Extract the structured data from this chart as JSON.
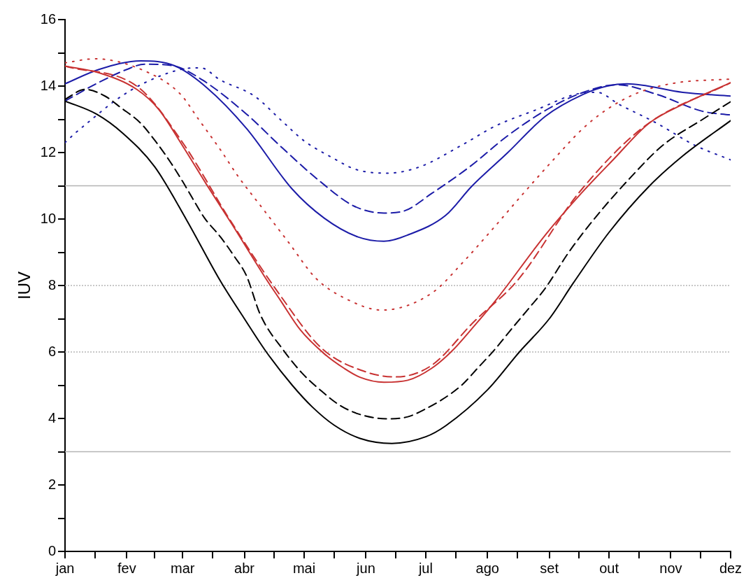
{
  "chart_data": {
    "type": "line",
    "ylabel": "IUV",
    "xlim": [
      "--01-01",
      "--12-01"
    ],
    "ylim": [
      0,
      16
    ],
    "xticks": [
      {
        "value": "--01-01",
        "label": "jan"
      },
      {
        "value": "--01-16",
        "label": null
      },
      {
        "value": "--02-01",
        "label": "fev"
      },
      {
        "value": "--02-15",
        "label": null
      },
      {
        "value": "--03-01",
        "label": "mar"
      },
      {
        "value": "--03-16",
        "label": null
      },
      {
        "value": "--04-01",
        "label": "abr"
      },
      {
        "value": "--04-16",
        "label": null
      },
      {
        "value": "--05-01",
        "label": "mai"
      },
      {
        "value": "--05-16",
        "label": null
      },
      {
        "value": "--06-01",
        "label": "jun"
      },
      {
        "value": "--06-16",
        "label": null
      },
      {
        "value": "--07-01",
        "label": "jul"
      },
      {
        "value": "--07-16",
        "label": null
      },
      {
        "value": "--08-01",
        "label": "ago"
      },
      {
        "value": "--08-16",
        "label": null
      },
      {
        "value": "--09-01",
        "label": "set"
      },
      {
        "value": "--09-16",
        "label": null
      },
      {
        "value": "--10-01",
        "label": "out"
      },
      {
        "value": "--10-16",
        "label": null
      },
      {
        "value": "--11-01",
        "label": "nov"
      },
      {
        "value": "--11-16",
        "label": null
      },
      {
        "value": "--12-01",
        "label": "dez"
      }
    ],
    "yticks": [
      0,
      {
        "value": 1,
        "label": null
      },
      2,
      {
        "value": 3,
        "label": null
      },
      4,
      {
        "value": 5,
        "label": null
      },
      6,
      {
        "value": 7,
        "label": null
      },
      8,
      {
        "value": 9,
        "label": null
      },
      10,
      {
        "value": 11,
        "label": null
      },
      12,
      {
        "value": 13,
        "label": null
      },
      14,
      {
        "value": 15,
        "label": null
      },
      16
    ],
    "grid": false,
    "legend": false,
    "marker": "none",
    "ref_lines": [
      {
        "axis": "y",
        "value": 11,
        "color": "#b4b4b4",
        "line_style": "solid"
      },
      {
        "axis": "y",
        "value": 8,
        "color": "#b4b4b4",
        "line_style": "dotted"
      },
      {
        "axis": "y",
        "value": 6,
        "color": "#b4b4b4",
        "line_style": "dotted"
      },
      {
        "axis": "y",
        "value": 3,
        "color": "#b4b4b4",
        "line_style": "solid"
      }
    ],
    "series": [
      {
        "color": "#000000",
        "line_style": "solid",
        "x": [
          "--01-01",
          "--01-17",
          "--01-30",
          "--02-15",
          "--03-03",
          "--03-20",
          "--04-01",
          "--04-12",
          "--04-25",
          "--05-05",
          "--05-16",
          "--05-29",
          "--06-14",
          "--07-01",
          "--07-11",
          "--08-01",
          "--08-17",
          "--09-01",
          "--09-13",
          "--10-01",
          "--10-21",
          "--11-07",
          "--12-01"
        ],
        "values": [
          13.55,
          13.15,
          12.58,
          11.57,
          9.97,
          8.13,
          7.0,
          6.0,
          5.0,
          4.35,
          3.8,
          3.4,
          3.25,
          3.45,
          3.78,
          4.86,
          6.0,
          7.0,
          8.07,
          9.6,
          10.98,
          11.9,
          12.96
        ]
      },
      {
        "color": "#000000",
        "line_style": "dashed",
        "x": [
          "--01-01",
          "--01-11",
          "--01-21",
          "--01-29",
          "--02-08",
          "--02-16",
          "--02-23",
          "--03-01",
          "--03-06",
          "--03-12",
          "--03-20",
          "--03-27",
          "--04-02",
          "--04-09",
          "--04-21",
          "--04-30",
          "--05-09",
          "--05-18",
          "--05-28",
          "--06-12",
          "--06-22",
          "--07-01",
          "--07-09",
          "--07-19",
          "--07-27",
          "--08-05",
          "--08-14",
          "--08-21",
          "--08-30",
          "--09-11",
          "--09-25",
          "--10-11",
          "--10-28",
          "--11-17",
          "--12-01"
        ],
        "values": [
          13.6,
          13.9,
          13.7,
          13.35,
          12.88,
          12.29,
          11.7,
          11.13,
          10.62,
          10.03,
          9.46,
          8.87,
          8.3,
          7.12,
          6.02,
          5.36,
          4.86,
          4.43,
          4.14,
          3.99,
          4.05,
          4.29,
          4.56,
          5.0,
          5.51,
          6.1,
          6.76,
          7.26,
          7.92,
          9.02,
          10.11,
          11.2,
          12.22,
          13.0,
          13.53
        ]
      },
      {
        "color": "#c83232",
        "line_style": "solid",
        "x": [
          "--01-01",
          "--01-18",
          "--02-06",
          "--02-17",
          "--03-01",
          "--03-13",
          "--03-26",
          "--04-11",
          "--04-19",
          "--04-29",
          "--05-11",
          "--05-21",
          "--05-29",
          "--06-10",
          "--06-22",
          "--07-04",
          "--07-14",
          "--07-25",
          "--08-06",
          "--08-30",
          "--09-17",
          "--10-03",
          "--10-21",
          "--11-07",
          "--12-01"
        ],
        "values": [
          14.6,
          14.4,
          13.9,
          13.3,
          12.2,
          11.04,
          9.82,
          8.28,
          7.56,
          6.67,
          5.95,
          5.51,
          5.24,
          5.09,
          5.15,
          5.51,
          6.02,
          6.76,
          7.62,
          9.52,
          10.77,
          11.78,
          12.88,
          13.45,
          14.1
        ]
      },
      {
        "color": "#c83232",
        "line_style": "dashed",
        "x": [
          "--01-01",
          "--02-07",
          "--03-01",
          "--03-25",
          "--04-19",
          "--05-10",
          "--06-01",
          "--06-16",
          "--07-04",
          "--07-25",
          "--08-16",
          "--09-16",
          "--10-19",
          "--12-01"
        ],
        "values": [
          14.6,
          13.95,
          12.3,
          9.95,
          7.7,
          6.1,
          5.4,
          5.25,
          5.6,
          6.9,
          8.15,
          10.8,
          12.8,
          14.1
        ]
      },
      {
        "color": "#c83232",
        "line_style": "dotted",
        "x": [
          "--01-01",
          "--01-16",
          "--02-12",
          "--02-28",
          "--03-09",
          "--03-20",
          "--03-29",
          "--04-10",
          "--04-23",
          "--05-07",
          "--05-22",
          "--06-09",
          "--07-04",
          "--07-20",
          "--08-04",
          "--08-19",
          "--09-03",
          "--09-18",
          "--09-30",
          "--10-16",
          "--11-04",
          "--12-01"
        ],
        "values": [
          14.7,
          14.82,
          14.4,
          13.75,
          13.0,
          12.08,
          11.27,
          10.33,
          9.31,
          8.21,
          7.6,
          7.26,
          7.77,
          8.72,
          9.73,
          10.77,
          11.78,
          12.73,
          13.3,
          13.81,
          14.1,
          14.21
        ]
      },
      {
        "color": "#1c1ca8",
        "line_style": "solid",
        "x": [
          "--01-01",
          "--01-18",
          "--02-08",
          "--02-25",
          "--03-13",
          "--04-02",
          "--04-25",
          "--05-11",
          "--05-28",
          "--06-10",
          "--06-22",
          "--07-11",
          "--07-24",
          "--08-11",
          "--08-30",
          "--09-18",
          "--09-30",
          "--10-10",
          "--11-07",
          "--12-01"
        ],
        "values": [
          14.07,
          14.5,
          14.76,
          14.61,
          13.96,
          12.73,
          10.9,
          10.03,
          9.46,
          9.33,
          9.52,
          10.11,
          10.98,
          11.99,
          13.09,
          13.75,
          14.0,
          14.07,
          13.81,
          13.7
        ]
      },
      {
        "color": "#1c1ca8",
        "line_style": "dashed",
        "x": [
          "--01-01",
          "--01-16",
          "--02-01",
          "--02-10",
          "--02-25",
          "--03-11",
          "--04-02",
          "--04-20",
          "--05-09",
          "--05-26",
          "--06-10",
          "--06-20",
          "--07-04",
          "--07-23",
          "--08-11",
          "--08-31",
          "--09-18",
          "--10-05",
          "--10-25",
          "--11-17",
          "--12-01"
        ],
        "values": [
          13.55,
          14.05,
          14.5,
          14.66,
          14.6,
          14.18,
          13.16,
          12.14,
          11.13,
          10.39,
          10.18,
          10.24,
          10.77,
          11.57,
          12.5,
          13.3,
          13.81,
          14.04,
          13.75,
          13.24,
          13.13
        ]
      },
      {
        "color": "#1c1ca8",
        "line_style": "dotted",
        "x": [
          "--01-01",
          "--01-06",
          "--01-12",
          "--01-27",
          "--02-10",
          "--02-28",
          "--03-10",
          "--03-20",
          "--04-06",
          "--04-20",
          "--05-01",
          "--05-15",
          "--05-27",
          "--06-12",
          "--06-28",
          "--07-19",
          "--08-05",
          "--08-26",
          "--09-14",
          "--09-25",
          "--10-06",
          "--10-25",
          "--11-13",
          "--12-01"
        ],
        "values": [
          12.3,
          12.58,
          12.88,
          13.6,
          14.1,
          14.5,
          14.55,
          14.18,
          13.7,
          12.94,
          12.35,
          11.85,
          11.49,
          11.38,
          11.57,
          12.22,
          12.8,
          13.3,
          13.75,
          13.81,
          13.45,
          12.88,
          12.22,
          11.78
        ]
      }
    ]
  }
}
